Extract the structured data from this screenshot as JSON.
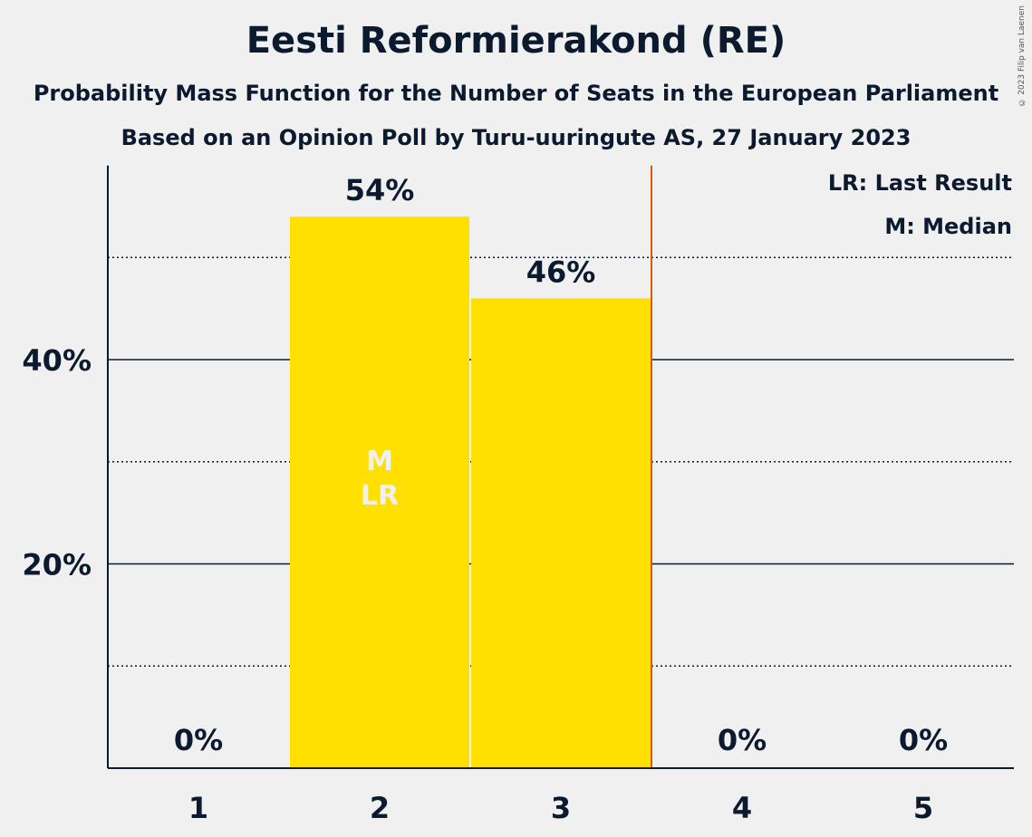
{
  "title": "Eesti Reformierakond (RE)",
  "subtitle1": "Probability Mass Function for the Number of Seats in the European Parliament",
  "subtitle2": "Based on an Opinion Poll by Turu-uuringute AS, 27 January 2023",
  "copyright": "© 2023 Filip van Laenen",
  "legend": {
    "lr": "LR: Last Result",
    "m": "M: Median"
  },
  "colors": {
    "bar": "#ffe000",
    "last_result_line": "#e05a00",
    "text": "#0b1a2e",
    "bar_marker_text": "#f0f0f0"
  },
  "chart_data": {
    "type": "bar",
    "categories": [
      "1",
      "2",
      "3",
      "4",
      "5"
    ],
    "values": [
      0,
      54,
      46,
      0,
      0
    ],
    "value_labels": [
      "0%",
      "54%",
      "46%",
      "0%",
      "0%"
    ],
    "ylim": [
      0,
      59
    ],
    "major_ticks": [
      20,
      40
    ],
    "major_tick_labels": [
      "20%",
      "40%"
    ],
    "minor_gridlines": [
      10,
      30,
      50
    ],
    "median_category": "2",
    "last_result_category": "2",
    "bar_markers": {
      "2": [
        "M",
        "LR"
      ]
    },
    "last_result_line_after_category": "3"
  }
}
